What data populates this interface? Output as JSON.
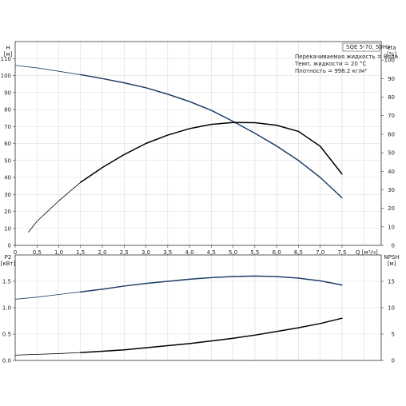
{
  "chart_data": [
    {
      "type": "line",
      "title": "SQE 5-70, 50Hz",
      "notes": [
        "Перекачиваемая жидкость = Вода",
        "Темп. жидкости = 20 °C",
        "Плотность = 998.2 кг/м³"
      ],
      "xlabel": "Q [м³/ч]",
      "ylabel_left": "H\n[м]",
      "ylabel_right": "eta\n[%]",
      "xlim": [
        0,
        8.4
      ],
      "ylim_left": [
        0,
        120
      ],
      "ylim_right": [
        0,
        110
      ],
      "x_ticks": [
        "0",
        "0.5",
        "1.0",
        "1.5",
        "2.0",
        "2.5",
        "3.0",
        "3.5",
        "4.0",
        "4.5",
        "5.0",
        "5.5",
        "6.0",
        "6.5",
        "7.0",
        "7.5"
      ],
      "y_ticks_left": [
        "0",
        "10",
        "20",
        "30",
        "40",
        "50",
        "60",
        "70",
        "80",
        "90",
        "100",
        "110"
      ],
      "y_ticks_right": [
        "0",
        "10",
        "20",
        "30",
        "40",
        "50",
        "60",
        "70",
        "80",
        "90",
        "100"
      ],
      "grid": true,
      "series": [
        {
          "axis": "left",
          "color": "#1e3f66",
          "x": [
            0,
            0.5,
            1.0,
            1.5,
            2.0,
            2.5,
            3.0,
            3.5,
            4.0,
            4.5,
            5.0,
            5.5,
            6.0,
            6.5,
            7.0,
            7.5
          ],
          "values": [
            106,
            104.5,
            102.5,
            100.5,
            98.2,
            95.7,
            92.8,
            89,
            84.7,
            79.5,
            73,
            66,
            58.5,
            50,
            40,
            28
          ],
          "thin_until_x": 1.5
        },
        {
          "axis": "right",
          "color": "#000000",
          "x": [
            0.3,
            0.5,
            1.0,
            1.5,
            2.0,
            2.5,
            3.0,
            3.5,
            4.0,
            4.5,
            5.0,
            5.5,
            6.0,
            6.5,
            7.0,
            7.5
          ],
          "values": [
            7,
            13,
            24,
            34,
            42,
            49,
            55,
            59.5,
            63,
            65.3,
            66.3,
            66.2,
            64.8,
            61.5,
            53.5,
            38.5
          ],
          "thin_until_x": 1.5
        }
      ]
    },
    {
      "type": "line",
      "xlabel": "",
      "ylabel_left": "P2\n[кВт]",
      "ylabel_right": "NPSH\n[м]",
      "xlim": [
        0,
        8.4
      ],
      "ylim_left": [
        0,
        2.0
      ],
      "ylim_right": [
        0,
        20
      ],
      "y_ticks_left": [
        "0.0",
        "0.5",
        "1.0",
        "1.5"
      ],
      "y_ticks_right": [
        "0",
        "5",
        "10",
        "15"
      ],
      "grid": true,
      "series": [
        {
          "axis": "left",
          "color": "#1e3f66",
          "x": [
            0,
            0.5,
            1.0,
            1.5,
            2.0,
            2.5,
            3.0,
            3.5,
            4.0,
            4.5,
            5.0,
            5.5,
            6.0,
            6.5,
            7.0,
            7.5
          ],
          "values": [
            1.16,
            1.2,
            1.25,
            1.3,
            1.35,
            1.41,
            1.46,
            1.5,
            1.54,
            1.57,
            1.59,
            1.6,
            1.59,
            1.56,
            1.51,
            1.43
          ],
          "thin_until_x": 1.5
        },
        {
          "axis": "right",
          "color": "#000000",
          "x": [
            0,
            0.5,
            1.0,
            1.5,
            2.0,
            2.5,
            3.0,
            3.5,
            4.0,
            4.5,
            5.0,
            5.5,
            6.0,
            6.5,
            7.0,
            7.5
          ],
          "values": [
            1.0,
            1.15,
            1.3,
            1.5,
            1.75,
            2.0,
            2.4,
            2.8,
            3.2,
            3.7,
            4.2,
            4.8,
            5.5,
            6.2,
            7.0,
            8.0
          ],
          "thin_until_x": 1.5
        }
      ]
    }
  ]
}
